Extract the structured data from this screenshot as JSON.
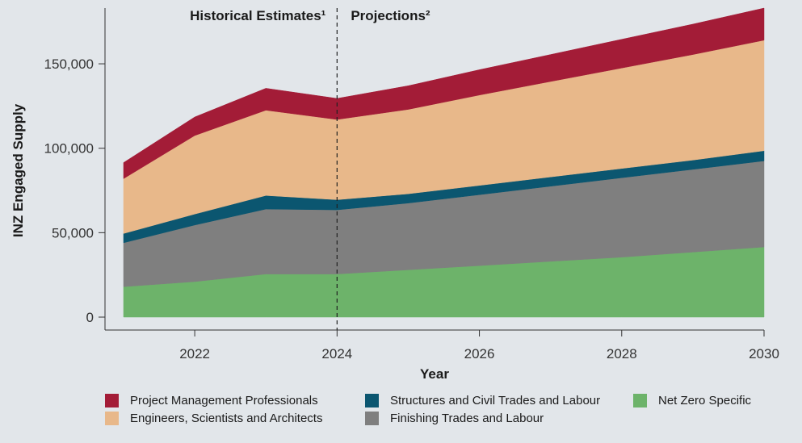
{
  "chart_data": {
    "type": "area",
    "stacked": true,
    "x": [
      2021,
      2022,
      2023,
      2024,
      2025,
      2026,
      2027,
      2028,
      2029,
      2030
    ],
    "xticks": [
      2022,
      2024,
      2026,
      2028,
      2030
    ],
    "xtick_labels": [
      "2022",
      "2024",
      "2026",
      "2028",
      "2030"
    ],
    "ylim": [
      0,
      183000
    ],
    "yticks": [
      0,
      50000,
      100000,
      150000
    ],
    "ytick_labels": [
      "0",
      "50,000",
      "100,000",
      "150,000"
    ],
    "xlabel": "Year",
    "ylabel": "INZ Engaged Supply",
    "divider_x": 2024,
    "annotations": [
      "Historical Estimates¹",
      "Projections²"
    ],
    "series": [
      {
        "name": "Net Zero Specific",
        "color": "#6db36a",
        "values": [
          18000,
          21000,
          25500,
          25500,
          28000,
          30500,
          33000,
          35500,
          38500,
          41500
        ]
      },
      {
        "name": "Finishing Trades and Labour",
        "color": "#7f7f7f",
        "values": [
          26000,
          33500,
          38500,
          38000,
          39500,
          42000,
          44500,
          47000,
          49000,
          51000
        ]
      },
      {
        "name": "Structures and Civil Trades and Labour",
        "color": "#0b5670",
        "values": [
          5500,
          6500,
          8000,
          6000,
          5500,
          5500,
          5500,
          5500,
          5500,
          6000
        ]
      },
      {
        "name": "Engineers, Scientists and Architects",
        "color": "#e8b88a",
        "values": [
          32500,
          46500,
          50500,
          47500,
          50000,
          53500,
          56500,
          59500,
          62500,
          65500
        ]
      },
      {
        "name": "Project Management Professionals",
        "color": "#a31c37",
        "values": [
          9500,
          11000,
          13000,
          12500,
          14000,
          15000,
          16000,
          17000,
          18000,
          19000
        ]
      }
    ]
  },
  "legend": {
    "col1": [
      "Project Management Professionals",
      "Engineers, Scientists and Architects"
    ],
    "col2": [
      "Structures and Civil Trades and Labour",
      "Finishing Trades and Labour"
    ],
    "col3": [
      "Net Zero Specific"
    ]
  }
}
